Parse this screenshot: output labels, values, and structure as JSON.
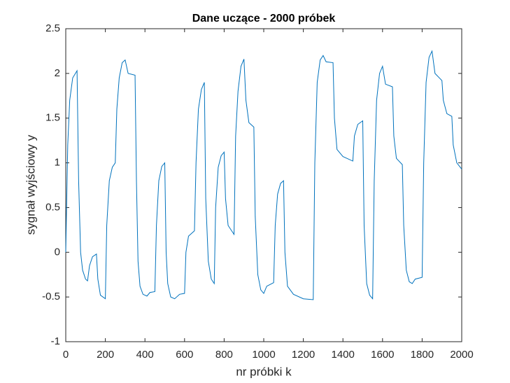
{
  "chart_data": {
    "type": "line",
    "title": "Dane uczące - 2000 próbek",
    "x_label": "nr próbki k",
    "y_label": "sygnał wyjściowy y",
    "xlim": [
      0,
      2000
    ],
    "ylim": [
      -1,
      2.5
    ],
    "xticks": [
      0,
      200,
      400,
      600,
      800,
      1000,
      1200,
      1400,
      1600,
      1800,
      2000
    ],
    "yticks": [
      -1,
      -0.5,
      0,
      0.5,
      1,
      1.5,
      2,
      2.5
    ],
    "grid": false,
    "series": [
      {
        "color": "#0072bd",
        "x": [
          0,
          10,
          20,
          35,
          57,
          65,
          75,
          85,
          100,
          110,
          120,
          135,
          155,
          162,
          175,
          200,
          207,
          220,
          235,
          250,
          258,
          270,
          285,
          300,
          315,
          350,
          357,
          365,
          375,
          390,
          410,
          425,
          450,
          458,
          470,
          485,
          500,
          507,
          515,
          530,
          550,
          575,
          600,
          607,
          620,
          650,
          658,
          670,
          685,
          700,
          707,
          720,
          735,
          750,
          757,
          770,
          785,
          800,
          807,
          820,
          850,
          858,
          870,
          885,
          900,
          910,
          925,
          950,
          957,
          970,
          985,
          1000,
          1015,
          1050,
          1058,
          1070,
          1085,
          1100,
          1107,
          1120,
          1150,
          1200,
          1250,
          1258,
          1270,
          1285,
          1300,
          1315,
          1350,
          1357,
          1370,
          1400,
          1450,
          1458,
          1475,
          1500,
          1507,
          1520,
          1535,
          1550,
          1558,
          1570,
          1585,
          1600,
          1615,
          1650,
          1657,
          1670,
          1700,
          1707,
          1720,
          1735,
          1750,
          1765,
          1800,
          1808,
          1820,
          1835,
          1850,
          1865,
          1900,
          1907,
          1925,
          1950,
          1957,
          1975,
          2000
        ],
        "values": [
          0,
          1.2,
          1.7,
          1.95,
          2.03,
          0.8,
          0.0,
          -0.2,
          -0.3,
          -0.32,
          -0.15,
          -0.05,
          -0.02,
          -0.3,
          -0.48,
          -0.52,
          0.3,
          0.8,
          0.95,
          1.0,
          1.6,
          1.95,
          2.12,
          2.15,
          2.0,
          1.98,
          0.8,
          -0.1,
          -0.38,
          -0.47,
          -0.49,
          -0.45,
          -0.44,
          0.3,
          0.8,
          0.96,
          1.0,
          0.0,
          -0.35,
          -0.5,
          -0.52,
          -0.47,
          -0.46,
          0.0,
          0.18,
          0.24,
          1.0,
          1.6,
          1.82,
          1.9,
          0.6,
          -0.1,
          -0.3,
          -0.35,
          0.5,
          0.95,
          1.08,
          1.12,
          0.6,
          0.3,
          0.2,
          1.3,
          1.8,
          2.08,
          2.16,
          1.7,
          1.45,
          1.4,
          0.4,
          -0.25,
          -0.42,
          -0.46,
          -0.38,
          -0.34,
          0.3,
          0.65,
          0.77,
          0.8,
          0.0,
          -0.38,
          -0.47,
          -0.52,
          -0.53,
          1.0,
          1.9,
          2.15,
          2.2,
          2.13,
          2.12,
          1.5,
          1.15,
          1.07,
          1.02,
          1.3,
          1.43,
          1.47,
          0.3,
          -0.35,
          -0.48,
          -0.52,
          0.8,
          1.7,
          2.0,
          2.08,
          1.88,
          1.85,
          1.3,
          1.05,
          0.98,
          0.3,
          -0.2,
          -0.33,
          -0.35,
          -0.3,
          -0.28,
          1.0,
          1.9,
          2.18,
          2.25,
          2.0,
          1.92,
          1.7,
          1.55,
          1.52,
          1.2,
          1.0,
          0.93
        ]
      }
    ]
  }
}
